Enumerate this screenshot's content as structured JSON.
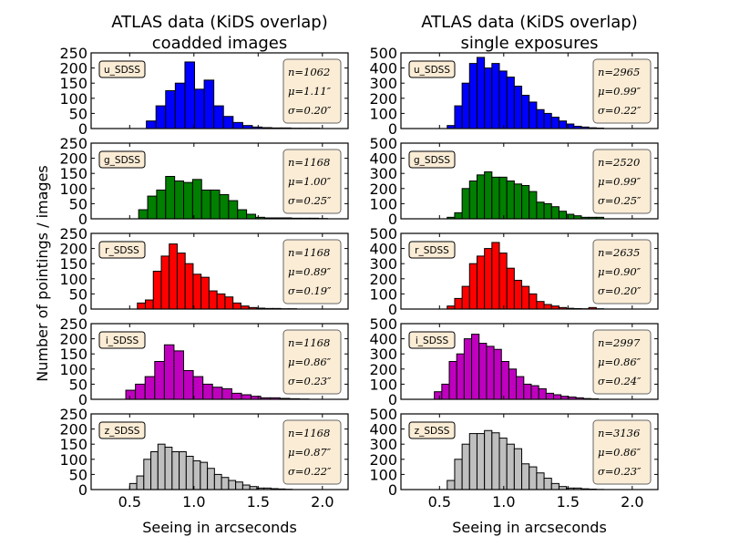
{
  "figure": {
    "ylabel": "Number of pointings / images",
    "xlabel": "Seeing in arcseconds"
  },
  "columns": [
    {
      "title_line1": "ATLAS data (KiDS overlap)",
      "title_line2": "coadded images",
      "xlim": [
        0.2,
        2.2
      ],
      "ylim": [
        0,
        250
      ],
      "xticks": [
        "0.5",
        "1.0",
        "1.5",
        "2.0"
      ],
      "yticks": [
        "0",
        "50",
        "100",
        "150",
        "200",
        "250"
      ]
    },
    {
      "title_line1": "ATLAS data (KiDS overlap)",
      "title_line2": "single exposures",
      "xlim": [
        0.2,
        2.2
      ],
      "ylim": [
        0,
        500
      ],
      "xticks": [
        "0.5",
        "1.0",
        "1.5",
        "2.0"
      ],
      "yticks": [
        "0",
        "100",
        "200",
        "300",
        "400",
        "500"
      ]
    }
  ],
  "bands": [
    {
      "label": "u_SDSS",
      "color": "#0000ff"
    },
    {
      "label": "g_SDSS",
      "color": "#007f00"
    },
    {
      "label": "r_SDSS",
      "color": "#ff0000"
    },
    {
      "label": "i_SDSS",
      "color": "#bf00bf"
    },
    {
      "label": "z_SDSS",
      "color": "#bfbfbf"
    }
  ],
  "chart_data": [
    {
      "type": "bar",
      "column": 0,
      "band": "u_SDSS",
      "bin_width": 0.075,
      "bin_starts": [
        0.63,
        0.705,
        0.78,
        0.855,
        0.93,
        1.005,
        1.08,
        1.155,
        1.23,
        1.305,
        1.38,
        1.455,
        1.53,
        1.605,
        1.68,
        1.755,
        1.83,
        1.905
      ],
      "values": [
        25,
        75,
        125,
        150,
        220,
        130,
        160,
        75,
        40,
        20,
        10,
        5,
        3,
        2,
        2,
        1,
        1,
        1
      ],
      "stats": {
        "n": "n=1062",
        "mu": "μ=1.11″",
        "sigma": "σ=0.20″"
      }
    },
    {
      "type": "bar",
      "column": 1,
      "band": "u_SDSS",
      "bin_width": 0.058,
      "bin_starts": [
        0.56,
        0.618,
        0.676,
        0.734,
        0.792,
        0.85,
        0.908,
        0.966,
        1.024,
        1.082,
        1.14,
        1.198,
        1.256,
        1.314,
        1.372,
        1.43,
        1.488,
        1.546,
        1.604,
        1.662,
        1.72
      ],
      "values": [
        20,
        150,
        300,
        430,
        470,
        400,
        430,
        380,
        340,
        280,
        220,
        175,
        125,
        100,
        75,
        50,
        30,
        15,
        10,
        5,
        3
      ],
      "stats": {
        "n": "n=2965",
        "mu": "μ=0.99″",
        "sigma": "σ=0.22″"
      }
    },
    {
      "type": "bar",
      "column": 0,
      "band": "g_SDSS",
      "bin_width": 0.07,
      "bin_starts": [
        0.57,
        0.64,
        0.71,
        0.78,
        0.85,
        0.92,
        0.99,
        1.06,
        1.13,
        1.2,
        1.27,
        1.34,
        1.41,
        1.48,
        1.55,
        1.62,
        1.69,
        1.76,
        1.83,
        1.9,
        1.97
      ],
      "values": [
        30,
        75,
        95,
        140,
        125,
        120,
        130,
        95,
        95,
        80,
        60,
        30,
        15,
        5,
        3,
        3,
        3,
        2,
        2,
        2,
        1
      ],
      "stats": {
        "n": "n=1168",
        "mu": "μ=1.00″",
        "sigma": "σ=0.25″"
      }
    },
    {
      "type": "bar",
      "column": 1,
      "band": "g_SDSS",
      "bin_width": 0.058,
      "bin_starts": [
        0.56,
        0.618,
        0.676,
        0.734,
        0.792,
        0.85,
        0.908,
        0.966,
        1.024,
        1.082,
        1.14,
        1.198,
        1.256,
        1.314,
        1.372,
        1.43,
        1.488,
        1.546,
        1.604,
        1.662,
        1.72
      ],
      "values": [
        10,
        40,
        200,
        250,
        290,
        310,
        275,
        275,
        250,
        230,
        220,
        180,
        110,
        100,
        80,
        50,
        30,
        20,
        10,
        10,
        10
      ],
      "stats": {
        "n": "n=2520",
        "mu": "μ=0.99″",
        "sigma": "σ=0.25″"
      }
    },
    {
      "type": "bar",
      "column": 0,
      "band": "r_SDSS",
      "bin_width": 0.062,
      "bin_starts": [
        0.56,
        0.622,
        0.684,
        0.746,
        0.808,
        0.87,
        0.932,
        0.994,
        1.056,
        1.118,
        1.18,
        1.242,
        1.304,
        1.366,
        1.428,
        1.49,
        1.552,
        1.614,
        1.676,
        1.738
      ],
      "values": [
        20,
        30,
        125,
        175,
        215,
        185,
        150,
        115,
        105,
        60,
        50,
        40,
        20,
        10,
        5,
        3,
        2,
        2,
        1,
        1
      ],
      "stats": {
        "n": "n=1168",
        "mu": "μ=0.89″",
        "sigma": "σ=0.19″"
      }
    },
    {
      "type": "bar",
      "column": 1,
      "band": "r_SDSS",
      "bin_width": 0.058,
      "bin_starts": [
        0.56,
        0.618,
        0.676,
        0.734,
        0.792,
        0.85,
        0.908,
        0.966,
        1.024,
        1.082,
        1.14,
        1.198,
        1.256,
        1.314,
        1.372,
        1.43,
        1.488,
        1.546,
        1.604,
        1.662,
        1.72
      ],
      "values": [
        20,
        70,
        150,
        300,
        350,
        400,
        440,
        370,
        270,
        190,
        150,
        100,
        50,
        30,
        20,
        10,
        5,
        3,
        2,
        10,
        2
      ],
      "stats": {
        "n": "n=2635",
        "mu": "μ=0.90″",
        "sigma": "σ=0.20″"
      }
    },
    {
      "type": "bar",
      "column": 0,
      "band": "i_SDSS",
      "bin_width": 0.075,
      "bin_starts": [
        0.47,
        0.545,
        0.62,
        0.695,
        0.77,
        0.845,
        0.92,
        0.995,
        1.07,
        1.145,
        1.22,
        1.295,
        1.37,
        1.445,
        1.52,
        1.595,
        1.67,
        1.745,
        1.82
      ],
      "values": [
        30,
        50,
        75,
        125,
        180,
        160,
        95,
        75,
        50,
        40,
        35,
        20,
        15,
        10,
        5,
        5,
        3,
        2,
        1
      ],
      "stats": {
        "n": "n=1168",
        "mu": "μ=0.86″",
        "sigma": "σ=0.23″"
      }
    },
    {
      "type": "bar",
      "column": 1,
      "band": "i_SDSS",
      "bin_width": 0.058,
      "bin_starts": [
        0.46,
        0.518,
        0.576,
        0.634,
        0.692,
        0.75,
        0.808,
        0.866,
        0.924,
        0.982,
        1.04,
        1.098,
        1.156,
        1.214,
        1.272,
        1.33,
        1.388,
        1.446,
        1.504,
        1.562,
        1.62,
        1.678
      ],
      "values": [
        50,
        100,
        250,
        300,
        400,
        430,
        370,
        350,
        330,
        250,
        200,
        150,
        100,
        90,
        70,
        40,
        30,
        20,
        15,
        10,
        5,
        3
      ],
      "stats": {
        "n": "n=2997",
        "mu": "μ=0.86″",
        "sigma": "σ=0.24″"
      }
    },
    {
      "type": "bar",
      "column": 0,
      "band": "z_SDSS",
      "bin_width": 0.055,
      "bin_starts": [
        0.5,
        0.555,
        0.61,
        0.665,
        0.72,
        0.775,
        0.83,
        0.885,
        0.94,
        0.995,
        1.05,
        1.105,
        1.16,
        1.215,
        1.27,
        1.325,
        1.38,
        1.435,
        1.49,
        1.545,
        1.6,
        1.655,
        1.71
      ],
      "values": [
        20,
        45,
        100,
        125,
        150,
        140,
        125,
        125,
        110,
        95,
        90,
        70,
        50,
        40,
        30,
        25,
        15,
        10,
        5,
        5,
        3,
        2,
        1
      ],
      "stats": {
        "n": "n=1168",
        "mu": "μ=0.87″",
        "sigma": "σ=0.22″"
      }
    },
    {
      "type": "bar",
      "column": 1,
      "band": "z_SDSS",
      "bin_width": 0.058,
      "bin_starts": [
        0.56,
        0.618,
        0.676,
        0.734,
        0.792,
        0.85,
        0.908,
        0.966,
        1.024,
        1.082,
        1.14,
        1.198,
        1.256,
        1.314,
        1.372,
        1.43,
        1.488,
        1.546,
        1.604,
        1.662,
        1.72
      ],
      "values": [
        60,
        200,
        300,
        370,
        370,
        390,
        375,
        340,
        300,
        270,
        170,
        150,
        110,
        75,
        40,
        20,
        10,
        10,
        5,
        3,
        1
      ],
      "stats": {
        "n": "n=3136",
        "mu": "μ=0.86″",
        "sigma": "σ=0.23″"
      }
    }
  ]
}
